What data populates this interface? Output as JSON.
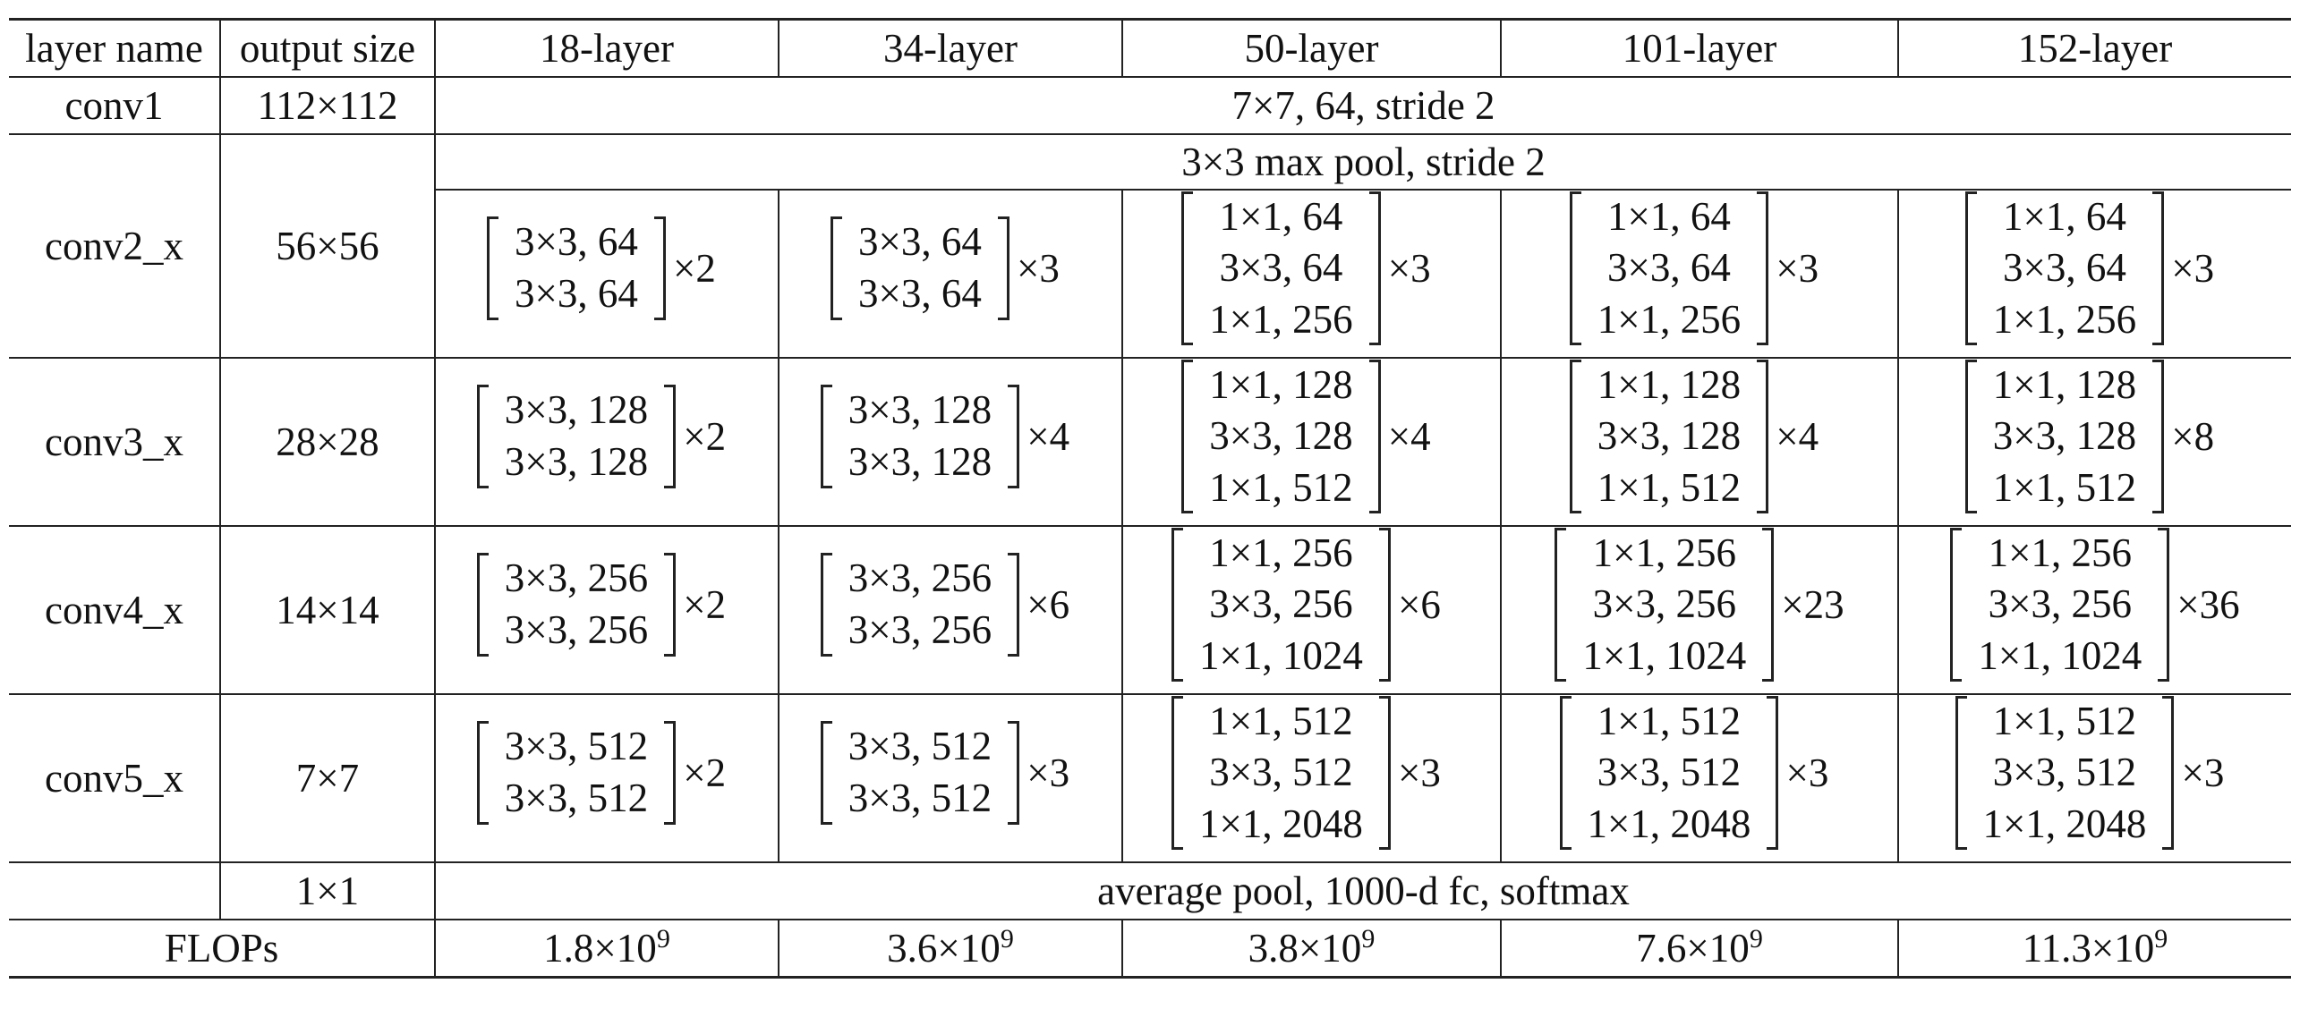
{
  "headers": [
    "layer name",
    "output size",
    "18-layer",
    "34-layer",
    "50-layer",
    "101-layer",
    "152-layer"
  ],
  "conv1": {
    "name": "conv1",
    "size": "112×112",
    "spec": "7×7, 64, stride 2"
  },
  "pool": {
    "spec": "3×3 max pool, stride 2"
  },
  "conv2": {
    "name": "conv2_x",
    "size": "56×56",
    "cells": [
      {
        "lines": [
          "3×3, 64",
          "3×3, 64"
        ],
        "times": "×2"
      },
      {
        "lines": [
          "3×3, 64",
          "3×3, 64"
        ],
        "times": "×3"
      },
      {
        "lines": [
          "1×1, 64",
          "3×3, 64",
          "1×1, 256"
        ],
        "times": "×3"
      },
      {
        "lines": [
          "1×1, 64",
          "3×3, 64",
          "1×1, 256"
        ],
        "times": "×3"
      },
      {
        "lines": [
          "1×1, 64",
          "3×3, 64",
          "1×1, 256"
        ],
        "times": "×3"
      }
    ]
  },
  "conv3": {
    "name": "conv3_x",
    "size": "28×28",
    "cells": [
      {
        "lines": [
          "3×3, 128",
          "3×3, 128"
        ],
        "times": "×2"
      },
      {
        "lines": [
          "3×3, 128",
          "3×3, 128"
        ],
        "times": "×4"
      },
      {
        "lines": [
          "1×1, 128",
          "3×3, 128",
          "1×1, 512"
        ],
        "times": "×4"
      },
      {
        "lines": [
          "1×1, 128",
          "3×3, 128",
          "1×1, 512"
        ],
        "times": "×4"
      },
      {
        "lines": [
          "1×1, 128",
          "3×3, 128",
          "1×1, 512"
        ],
        "times": "×8"
      }
    ]
  },
  "conv4": {
    "name": "conv4_x",
    "size": "14×14",
    "cells": [
      {
        "lines": [
          "3×3, 256",
          "3×3, 256"
        ],
        "times": "×2"
      },
      {
        "lines": [
          "3×3, 256",
          "3×3, 256"
        ],
        "times": "×6"
      },
      {
        "lines": [
          "1×1, 256",
          "3×3, 256",
          "1×1, 1024"
        ],
        "times": "×6"
      },
      {
        "lines": [
          "1×1, 256",
          "3×3, 256",
          "1×1, 1024"
        ],
        "times": "×23"
      },
      {
        "lines": [
          "1×1, 256",
          "3×3, 256",
          "1×1, 1024"
        ],
        "times": "×36"
      }
    ]
  },
  "conv5": {
    "name": "conv5_x",
    "size": "7×7",
    "cells": [
      {
        "lines": [
          "3×3, 512",
          "3×3, 512"
        ],
        "times": "×2"
      },
      {
        "lines": [
          "3×3, 512",
          "3×3, 512"
        ],
        "times": "×3"
      },
      {
        "lines": [
          "1×1, 512",
          "3×3, 512",
          "1×1, 2048"
        ],
        "times": "×3"
      },
      {
        "lines": [
          "1×1, 512",
          "3×3, 512",
          "1×1, 2048"
        ],
        "times": "×3"
      },
      {
        "lines": [
          "1×1, 512",
          "3×3, 512",
          "1×1, 2048"
        ],
        "times": "×3"
      }
    ]
  },
  "final": {
    "size": "1×1",
    "spec": "average pool, 1000-d fc, softmax"
  },
  "flops": {
    "label": "FLOPs",
    "values": [
      {
        "base": "1.8×10",
        "exp": "9"
      },
      {
        "base": "3.6×10",
        "exp": "9"
      },
      {
        "base": "3.8×10",
        "exp": "9"
      },
      {
        "base": "7.6×10",
        "exp": "9"
      },
      {
        "base": "11.3×10",
        "exp": "9"
      }
    ]
  }
}
